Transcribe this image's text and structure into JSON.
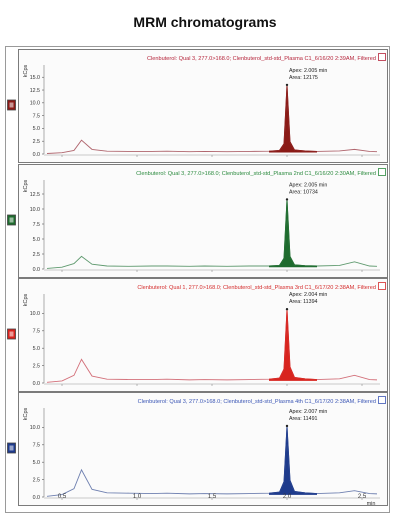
{
  "title": "MRM chromatograms",
  "chart_data": [
    {
      "type": "line",
      "header": "Clenbuterol: Qual 3, 277.0>168.0; Clenbuterol_std-std_Plasma C1_6/16/20 2:39AM, Filtered",
      "ylabel": "kCps",
      "yticks": [
        "15.0",
        "12.5",
        "10.0",
        "7.5",
        "5.0",
        "2.5",
        "0.0"
      ],
      "ylim": [
        0,
        17
      ],
      "peak_label": "Apex: 2.005 min",
      "area_label": "Area: 12175",
      "color": "#8a1a16",
      "baseline_color": "#b0666e",
      "header_color": "#b5243a",
      "box_color": "#8a1a16",
      "x": [
        0.4,
        0.5,
        0.58,
        0.63,
        0.7,
        0.8,
        0.95,
        1.1,
        1.2,
        1.35,
        1.45,
        1.6,
        1.75,
        1.88,
        1.95,
        1.98,
        2.0,
        2.02,
        2.05,
        2.12,
        2.2,
        2.35,
        2.45,
        2.55,
        2.6
      ],
      "values": [
        0.1,
        0.25,
        0.7,
        2.7,
        0.9,
        0.55,
        0.5,
        0.5,
        0.55,
        0.45,
        0.5,
        0.45,
        0.5,
        0.55,
        0.7,
        2.0,
        13.5,
        2.4,
        0.8,
        0.6,
        0.5,
        0.6,
        0.9,
        0.5,
        0.45
      ]
    },
    {
      "type": "line",
      "header": "Clenbuterol: Qual 3, 277.0>168.0; Clenbuterol_std-std_Plasma 2nd C1_6/16/20 2:30AM, Filtered",
      "ylabel": "kCps",
      "yticks": [
        "12.5",
        "10.0",
        "7.5",
        "5.0",
        "2.5",
        "0.0"
      ],
      "ylim": [
        0,
        14.5
      ],
      "peak_label": "Apex: 2.005 min",
      "area_label": "Area: 10734",
      "color": "#1e6b2e",
      "baseline_color": "#5f9a6f",
      "header_color": "#2b8a3e",
      "box_color": "#1e6b2e",
      "x": [
        0.4,
        0.5,
        0.58,
        0.63,
        0.7,
        0.8,
        0.95,
        1.1,
        1.2,
        1.35,
        1.45,
        1.6,
        1.75,
        1.88,
        1.95,
        1.98,
        2.0,
        2.02,
        2.05,
        2.12,
        2.2,
        2.35,
        2.45,
        2.55,
        2.6
      ],
      "values": [
        0.1,
        0.3,
        0.9,
        2.1,
        0.8,
        0.5,
        0.45,
        0.5,
        0.5,
        0.45,
        0.5,
        0.45,
        0.5,
        0.5,
        0.6,
        1.8,
        11.6,
        2.1,
        0.7,
        0.55,
        0.5,
        0.6,
        1.2,
        0.5,
        0.45
      ]
    },
    {
      "type": "line",
      "header": "Clenbuterol: Qual 1, 277.0>168.0; Clenbuterol_std-std_Plasma 3rd C1_6/17/20 2:38AM, Filtered",
      "ylabel": "kCps",
      "yticks": [
        "10.0",
        "7.5",
        "5.0",
        "2.5",
        "0.0"
      ],
      "ylim": [
        0,
        12.5
      ],
      "peak_label": "Apex: 2.004 min",
      "area_label": "Area: 11394",
      "color": "#d8241e",
      "baseline_color": "#d3707a",
      "header_color": "#d42b2b",
      "box_color": "#d8241e",
      "x": [
        0.4,
        0.5,
        0.58,
        0.63,
        0.7,
        0.8,
        0.95,
        1.1,
        1.2,
        1.35,
        1.45,
        1.6,
        1.75,
        1.88,
        1.95,
        1.98,
        2.0,
        2.02,
        2.05,
        2.12,
        2.2,
        2.35,
        2.45,
        2.55,
        2.6
      ],
      "values": [
        0.1,
        0.3,
        1.1,
        3.4,
        1.0,
        0.55,
        0.5,
        0.5,
        0.55,
        0.45,
        0.5,
        0.45,
        0.5,
        0.55,
        0.7,
        2.0,
        10.6,
        2.3,
        0.8,
        0.6,
        0.5,
        0.6,
        1.1,
        0.5,
        0.45
      ]
    },
    {
      "type": "line",
      "header": "Clenbuterol: Qual 3, 277.0>168.0; Clenbuterol_std-std_Plasma 4th C1_6/17/20 2:38AM, Filtered",
      "ylabel": "kCps",
      "yticks": [
        "10.0",
        "7.5",
        "5.0",
        "2.5",
        "0.0"
      ],
      "ylim": [
        0,
        12.5
      ],
      "peak_label": "Apex: 2.007 min",
      "area_label": "Area: 11491",
      "color": "#1e3b8c",
      "baseline_color": "#6f80b0",
      "header_color": "#3b56b5",
      "box_color": "#1e3b8c",
      "x": [
        0.4,
        0.5,
        0.58,
        0.63,
        0.7,
        0.8,
        0.95,
        1.1,
        1.2,
        1.35,
        1.45,
        1.6,
        1.75,
        1.88,
        1.95,
        1.98,
        2.0,
        2.02,
        2.05,
        2.12,
        2.2,
        2.35,
        2.45,
        2.55,
        2.6
      ],
      "values": [
        0.1,
        0.35,
        1.2,
        3.9,
        1.1,
        0.6,
        0.55,
        0.5,
        0.55,
        0.45,
        0.5,
        0.45,
        0.5,
        0.55,
        0.7,
        2.2,
        10.2,
        2.4,
        0.8,
        0.6,
        0.5,
        0.6,
        0.9,
        0.5,
        0.45
      ]
    }
  ],
  "x_axis": {
    "ticks": [
      "0.5",
      "1.0",
      "1.5",
      "2.0",
      "2.5"
    ],
    "tick_values": [
      0.5,
      1.0,
      1.5,
      2.0,
      2.5
    ],
    "unit": "min",
    "xlim": [
      0.38,
      2.62
    ]
  }
}
